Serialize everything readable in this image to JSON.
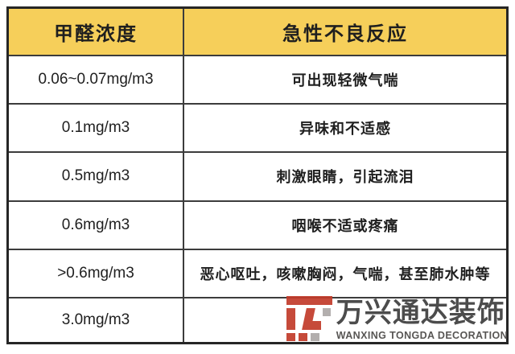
{
  "chart_data": {
    "type": "table",
    "title": "",
    "columns": [
      "甲醛浓度",
      "急性不良反应"
    ],
    "rows": [
      [
        "0.06~0.07mg/m3",
        "可出现轻微气喘"
      ],
      [
        "0.1mg/m3",
        "异味和不适感"
      ],
      [
        "0.5mg/m3",
        "刺激眼睛，引起流泪"
      ],
      [
        "0.6mg/m3",
        "咽喉不适或疼痛"
      ],
      [
        ">0.6mg/m3",
        "恶心呕吐，咳嗽胸闷，气喘，甚至肺水肿等"
      ],
      [
        "3.0mg/m3",
        ""
      ]
    ]
  },
  "watermark": {
    "brand_cn": "万兴通达装饰",
    "brand_en": "WANXING TONGDA DECORATION",
    "logo_icon": "wanxing-block-logo"
  },
  "colors": {
    "header_bg": "#F6CF5A",
    "border": "#262626",
    "grid_line": "#3C3C3C",
    "text": "#1F1F1F",
    "background": "#FFFFFF",
    "brand_red": "#C23B2A",
    "brand_gray": "#ADA9A8",
    "brand_text": "#3D3D3D"
  }
}
